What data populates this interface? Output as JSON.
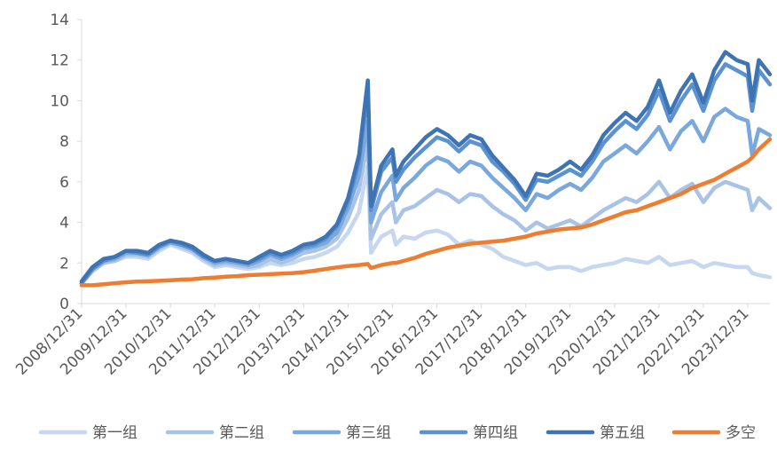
{
  "chart_data": {
    "type": "line",
    "ylim": [
      0,
      14
    ],
    "yticks": [
      "0",
      "2",
      "4",
      "6",
      "8",
      "10",
      "12",
      "14"
    ],
    "x_tick_labels": [
      "2008/12/31",
      "2009/12/31",
      "2010/12/31",
      "2011/12/31",
      "2012/12/31",
      "2013/12/31",
      "2014/12/31",
      "2015/12/31",
      "2016/12/31",
      "2017/12/31",
      "2018/12/31",
      "2019/12/31",
      "2020/12/31",
      "2021/12/31",
      "2022/12/31",
      "2023/12/31"
    ],
    "x": [
      "2008-12-31",
      "2009-03-31",
      "2009-06-30",
      "2009-09-30",
      "2009-12-31",
      "2010-03-31",
      "2010-06-30",
      "2010-09-30",
      "2010-12-31",
      "2011-03-31",
      "2011-06-30",
      "2011-09-30",
      "2011-12-31",
      "2012-03-31",
      "2012-06-30",
      "2012-09-30",
      "2012-12-31",
      "2013-03-31",
      "2013-06-30",
      "2013-09-30",
      "2013-12-31",
      "2014-03-31",
      "2014-06-30",
      "2014-09-30",
      "2014-12-31",
      "2015-03-31",
      "2015-06-12",
      "2015-07-08",
      "2015-09-30",
      "2015-12-31",
      "2016-01-28",
      "2016-03-31",
      "2016-06-30",
      "2016-09-30",
      "2016-12-31",
      "2017-03-31",
      "2017-06-30",
      "2017-09-30",
      "2017-12-31",
      "2018-03-31",
      "2018-06-30",
      "2018-09-30",
      "2018-12-31",
      "2019-03-31",
      "2019-06-30",
      "2019-09-30",
      "2019-12-31",
      "2020-03-31",
      "2020-06-30",
      "2020-09-30",
      "2020-12-31",
      "2021-03-31",
      "2021-06-30",
      "2021-09-30",
      "2021-12-31",
      "2022-03-31",
      "2022-06-30",
      "2022-09-30",
      "2022-12-31",
      "2023-03-31",
      "2023-06-30",
      "2023-09-30",
      "2023-12-31",
      "2024-02-05",
      "2024-03-31",
      "2024-06-30"
    ],
    "grid": false,
    "legend_position": "bottom",
    "series": [
      {
        "name": "第一组",
        "color": "#c6d7ef",
        "values": [
          1.0,
          1.6,
          2.0,
          2.1,
          2.3,
          2.3,
          2.2,
          2.6,
          2.9,
          2.7,
          2.5,
          2.1,
          1.8,
          1.9,
          1.8,
          1.7,
          1.8,
          2.0,
          1.9,
          2.0,
          2.2,
          2.3,
          2.5,
          2.8,
          3.5,
          4.5,
          6.8,
          2.5,
          3.3,
          3.6,
          2.9,
          3.3,
          3.2,
          3.5,
          3.6,
          3.4,
          2.9,
          3.1,
          2.9,
          2.7,
          2.3,
          2.1,
          1.9,
          2.0,
          1.7,
          1.8,
          1.8,
          1.6,
          1.8,
          1.9,
          2.0,
          2.2,
          2.1,
          2.0,
          2.3,
          1.9,
          2.0,
          2.1,
          1.8,
          2.0,
          1.9,
          1.8,
          1.8,
          1.5,
          1.4,
          1.3
        ]
      },
      {
        "name": "第二组",
        "color": "#a8c3e6",
        "values": [
          1.0,
          1.6,
          2.0,
          2.1,
          2.4,
          2.4,
          2.3,
          2.7,
          3.0,
          2.8,
          2.6,
          2.2,
          1.9,
          2.0,
          1.9,
          1.8,
          1.9,
          2.2,
          2.0,
          2.2,
          2.5,
          2.6,
          2.8,
          3.2,
          4.2,
          5.6,
          8.0,
          3.2,
          4.4,
          5.0,
          4.0,
          4.6,
          4.8,
          5.2,
          5.6,
          5.4,
          5.0,
          5.4,
          5.3,
          4.8,
          4.4,
          4.1,
          3.6,
          4.0,
          3.7,
          3.9,
          4.1,
          3.8,
          4.2,
          4.6,
          4.9,
          5.2,
          5.0,
          5.4,
          6.0,
          5.2,
          5.6,
          5.9,
          5.0,
          5.7,
          6.0,
          5.8,
          5.6,
          4.6,
          5.2,
          4.7
        ]
      },
      {
        "name": "第三组",
        "color": "#7aa8dc",
        "values": [
          1.0,
          1.7,
          2.1,
          2.2,
          2.5,
          2.5,
          2.4,
          2.8,
          3.0,
          2.9,
          2.7,
          2.3,
          2.0,
          2.1,
          2.0,
          1.9,
          2.1,
          2.4,
          2.2,
          2.4,
          2.7,
          2.8,
          3.0,
          3.5,
          4.7,
          6.3,
          9.0,
          4.0,
          5.5,
          6.3,
          5.1,
          5.7,
          6.2,
          6.8,
          7.2,
          7.0,
          6.5,
          7.0,
          6.8,
          6.2,
          5.7,
          5.2,
          4.6,
          5.4,
          5.2,
          5.6,
          5.9,
          5.6,
          6.2,
          7.0,
          7.4,
          7.8,
          7.4,
          8.0,
          8.7,
          7.6,
          8.5,
          9.0,
          8.0,
          9.2,
          9.6,
          9.2,
          9.0,
          7.3,
          8.6,
          8.3
        ]
      },
      {
        "name": "第四组",
        "color": "#5b92cf",
        "values": [
          1.0,
          1.7,
          2.1,
          2.3,
          2.6,
          2.5,
          2.4,
          2.8,
          3.1,
          2.9,
          2.7,
          2.3,
          2.1,
          2.2,
          2.1,
          2.0,
          2.2,
          2.5,
          2.3,
          2.5,
          2.8,
          2.9,
          3.2,
          3.8,
          5.0,
          7.0,
          10.5,
          4.6,
          6.5,
          7.2,
          6.0,
          6.6,
          7.2,
          7.7,
          8.2,
          8.0,
          7.5,
          8.0,
          7.8,
          7.0,
          6.5,
          5.9,
          5.1,
          6.1,
          6.0,
          6.3,
          6.6,
          6.3,
          7.0,
          7.9,
          8.5,
          9.0,
          8.6,
          9.3,
          10.5,
          9.0,
          10.0,
          10.8,
          9.5,
          11.0,
          11.8,
          11.5,
          11.2,
          9.5,
          11.5,
          10.8
        ]
      },
      {
        "name": "第五组",
        "color": "#3f74b4",
        "values": [
          1.1,
          1.8,
          2.2,
          2.3,
          2.6,
          2.6,
          2.5,
          2.9,
          3.1,
          3.0,
          2.8,
          2.4,
          2.1,
          2.2,
          2.1,
          2.0,
          2.3,
          2.6,
          2.4,
          2.6,
          2.9,
          3.0,
          3.3,
          3.9,
          5.2,
          7.3,
          11.0,
          4.8,
          6.8,
          7.6,
          6.3,
          7.0,
          7.6,
          8.2,
          8.6,
          8.3,
          7.8,
          8.3,
          8.1,
          7.3,
          6.7,
          6.1,
          5.3,
          6.4,
          6.3,
          6.6,
          7.0,
          6.6,
          7.3,
          8.3,
          8.9,
          9.4,
          9.0,
          9.7,
          11.0,
          9.4,
          10.5,
          11.3,
          9.9,
          11.5,
          12.4,
          12.0,
          11.8,
          10.0,
          12.0,
          11.3
        ]
      },
      {
        "name": "多空",
        "color": "#ed7d31",
        "values": [
          0.9,
          0.9,
          0.95,
          1.0,
          1.05,
          1.08,
          1.1,
          1.12,
          1.15,
          1.18,
          1.2,
          1.25,
          1.28,
          1.32,
          1.35,
          1.4,
          1.42,
          1.45,
          1.48,
          1.5,
          1.55,
          1.62,
          1.7,
          1.78,
          1.85,
          1.9,
          1.95,
          1.75,
          1.9,
          2.0,
          2.0,
          2.1,
          2.25,
          2.45,
          2.6,
          2.75,
          2.85,
          2.95,
          3.0,
          3.05,
          3.1,
          3.2,
          3.3,
          3.45,
          3.55,
          3.65,
          3.7,
          3.75,
          3.9,
          4.1,
          4.3,
          4.5,
          4.6,
          4.8,
          5.0,
          5.2,
          5.4,
          5.7,
          5.9,
          6.1,
          6.4,
          6.7,
          7.0,
          7.2,
          7.6,
          8.1
        ]
      }
    ]
  }
}
